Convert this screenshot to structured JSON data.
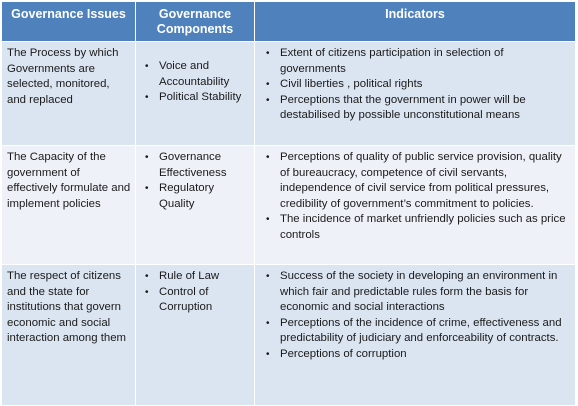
{
  "headers": [
    "Governance Issues",
    "Governance Components",
    "Indicators"
  ],
  "rows": [
    {
      "issue": "The Process by which Governments are selected, monitored, and replaced",
      "components": [
        "Voice and Accountability",
        "Political Stability"
      ],
      "indicators": [
        "Extent of citizens participation in selection of governments",
        "Civil liberties , political rights",
        "Perceptions that the government in power will be destabilised by possible unconstitutional means"
      ]
    },
    {
      "issue": "The Capacity of the government of effectively formulate and implement policies",
      "components": [
        "Governance Effectiveness",
        "Regulatory Quality"
      ],
      "indicators": [
        "Perceptions of quality of public service provision, quality of bureaucracy, competence of civil servants, independence of civil service from political pressures, credibility of government’s commitment to policies.",
        "The incidence of market unfriendly policies such as price controls"
      ]
    },
    {
      "issue": "The respect of citizens and the state for institutions that govern economic and social interaction among them",
      "components": [
        "Rule of Law",
        "Control of Corruption"
      ],
      "indicators": [
        "Success of the society in developing an environment in which fair and predictable rules form the basis for economic and social interactions",
        "Perceptions of the incidence of crime, effectiveness and predictability of judiciary and enforceability of contracts.",
        "Perceptions of corruption"
      ]
    }
  ],
  "bullet": "•",
  "colors": {
    "header_bg": "#4f81bd",
    "row_odd_bg": "#dbe5f1",
    "row_even_bg": "#eef2f8"
  }
}
